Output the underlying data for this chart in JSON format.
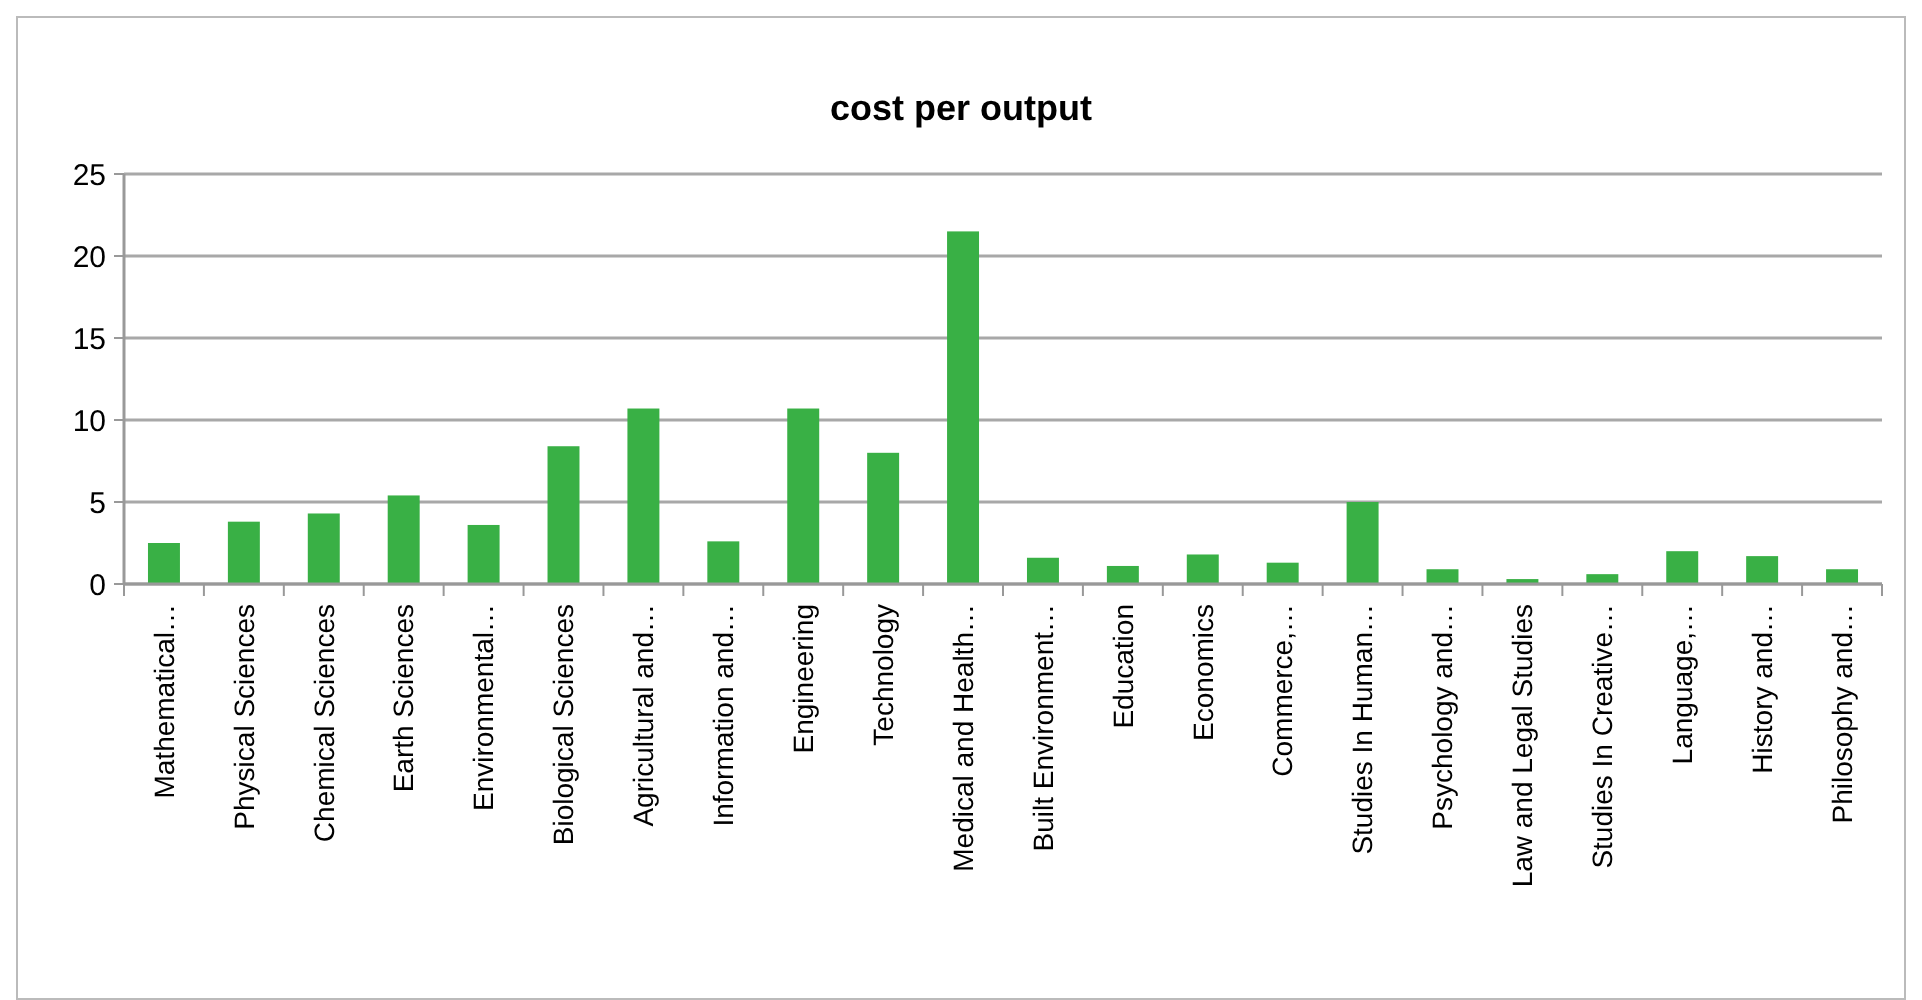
{
  "chart_data": {
    "type": "bar",
    "title": "cost per  output",
    "categories": [
      "Mathematical…",
      "Physical Sciences",
      "Chemical Sciences",
      "Earth Sciences",
      "Environmental…",
      "Biological Sciences",
      "Agricultural and…",
      "Information and…",
      "Engineering",
      "Technology",
      "Medical and Health…",
      "Built Environment…",
      "Education",
      "Economics",
      "Commerce,…",
      "Studies In Human…",
      "Psychology and…",
      "Law and Legal Studies",
      "Studies In Creative…",
      "Language,…",
      "History and…",
      "Philosophy and…"
    ],
    "values": [
      2.5,
      3.8,
      4.3,
      5.4,
      3.6,
      8.4,
      10.7,
      2.6,
      10.7,
      8.0,
      21.5,
      1.6,
      1.1,
      1.8,
      1.3,
      5.0,
      0.9,
      0.3,
      0.6,
      2.0,
      1.7,
      0.9
    ],
    "color": "#39b045",
    "ylim": [
      0,
      25
    ],
    "yticks": [
      0,
      5,
      10,
      15,
      20,
      25
    ],
    "grid": "y"
  }
}
